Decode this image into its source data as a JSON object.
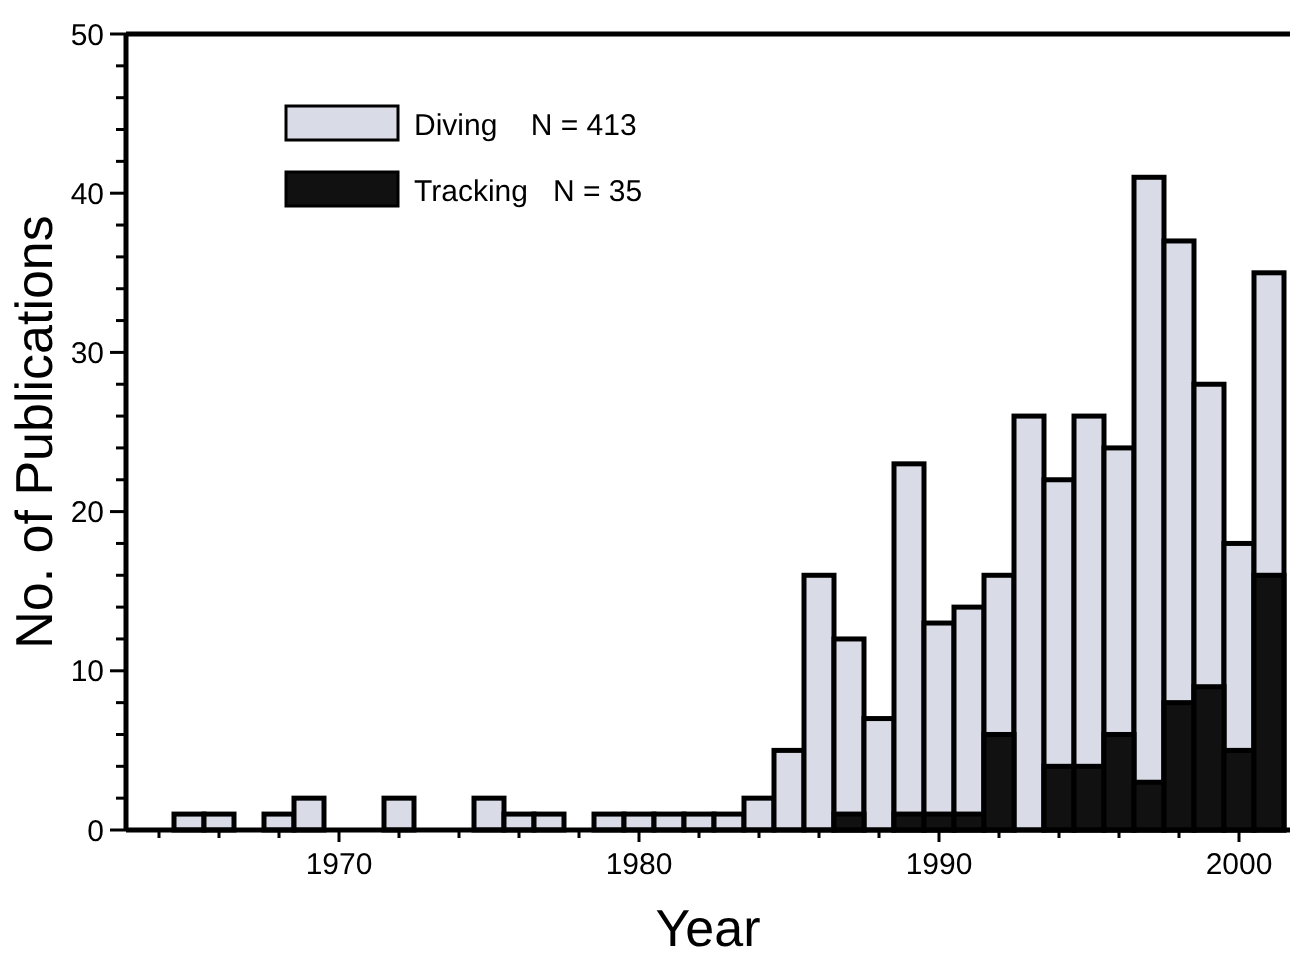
{
  "chart_data": {
    "type": "bar",
    "xlabel": "Year",
    "ylabel": "No. of Publications",
    "x": [
      1965,
      1966,
      1968,
      1969,
      1972,
      1975,
      1976,
      1977,
      1979,
      1980,
      1981,
      1982,
      1983,
      1984,
      1985,
      1986,
      1987,
      1988,
      1989,
      1990,
      1991,
      1992,
      1993,
      1994,
      1995,
      1996,
      1997,
      1998,
      1999,
      2000,
      2001
    ],
    "series": [
      {
        "name": "Diving    N = 413",
        "color": "#d9dce6",
        "values": [
          1,
          1,
          1,
          2,
          2,
          2,
          1,
          1,
          1,
          1,
          1,
          1,
          1,
          2,
          5,
          16,
          12,
          7,
          23,
          13,
          14,
          16,
          26,
          22,
          26,
          24,
          41,
          37,
          28,
          18,
          35
        ]
      },
      {
        "name": "Tracking   N = 35",
        "color": "#111111",
        "values": [
          null,
          null,
          null,
          null,
          null,
          null,
          null,
          null,
          null,
          null,
          null,
          null,
          null,
          null,
          null,
          null,
          1,
          null,
          1,
          1,
          1,
          6,
          null,
          4,
          4,
          6,
          3,
          8,
          9,
          5,
          16
        ]
      }
    ],
    "xlim": [
      1962.9,
      2001.7
    ],
    "xticks": [
      {
        "value": 1964,
        "label": null
      },
      {
        "value": 1966,
        "label": null
      },
      {
        "value": 1968,
        "label": null
      },
      1970,
      {
        "value": 1972,
        "label": null
      },
      {
        "value": 1974,
        "label": null
      },
      {
        "value": 1976,
        "label": null
      },
      {
        "value": 1978,
        "label": null
      },
      1980,
      {
        "value": 1982,
        "label": null
      },
      {
        "value": 1984,
        "label": null
      },
      {
        "value": 1986,
        "label": null
      },
      {
        "value": 1988,
        "label": null
      },
      1990,
      {
        "value": 1992,
        "label": null
      },
      {
        "value": 1994,
        "label": null
      },
      {
        "value": 1996,
        "label": null
      },
      {
        "value": 1998,
        "label": null
      },
      2000
    ],
    "ylim": [
      0,
      50
    ],
    "yticks": [
      0,
      {
        "value": 2,
        "label": null
      },
      {
        "value": 4,
        "label": null
      },
      {
        "value": 6,
        "label": null
      },
      {
        "value": 8,
        "label": null
      },
      10,
      {
        "value": 12,
        "label": null
      },
      {
        "value": 14,
        "label": null
      },
      {
        "value": 16,
        "label": null
      },
      {
        "value": 18,
        "label": null
      },
      20,
      {
        "value": 22,
        "label": null
      },
      {
        "value": 24,
        "label": null
      },
      {
        "value": 26,
        "label": null
      },
      {
        "value": 28,
        "label": null
      },
      30,
      {
        "value": 32,
        "label": null
      },
      {
        "value": 34,
        "label": null
      },
      {
        "value": 36,
        "label": null
      },
      {
        "value": 38,
        "label": null
      },
      40,
      {
        "value": 42,
        "label": null
      },
      {
        "value": 44,
        "label": null
      },
      {
        "value": 46,
        "label": null
      },
      {
        "value": 48,
        "label": null
      },
      50
    ],
    "grid": false,
    "legend": "top left"
  }
}
